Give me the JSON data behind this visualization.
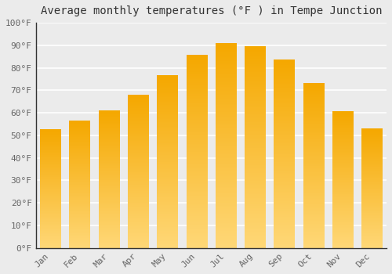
{
  "title": "Average monthly temperatures (°F ) in Tempe Junction",
  "months": [
    "Jan",
    "Feb",
    "Mar",
    "Apr",
    "May",
    "Jun",
    "Jul",
    "Aug",
    "Sep",
    "Oct",
    "Nov",
    "Dec"
  ],
  "values": [
    52.5,
    56.5,
    61,
    68,
    76.5,
    85.5,
    91,
    89.5,
    83.5,
    73,
    60.5,
    53
  ],
  "bar_color_top": "#F5A800",
  "bar_color_bottom": "#FFD878",
  "ylim": [
    0,
    100
  ],
  "yticks": [
    0,
    10,
    20,
    30,
    40,
    50,
    60,
    70,
    80,
    90,
    100
  ],
  "ytick_labels": [
    "0°F",
    "10°F",
    "20°F",
    "30°F",
    "40°F",
    "50°F",
    "60°F",
    "70°F",
    "80°F",
    "90°F",
    "100°F"
  ],
  "background_color": "#ebebeb",
  "grid_color": "#ffffff",
  "title_fontsize": 10,
  "tick_fontsize": 8,
  "bar_width": 0.7
}
